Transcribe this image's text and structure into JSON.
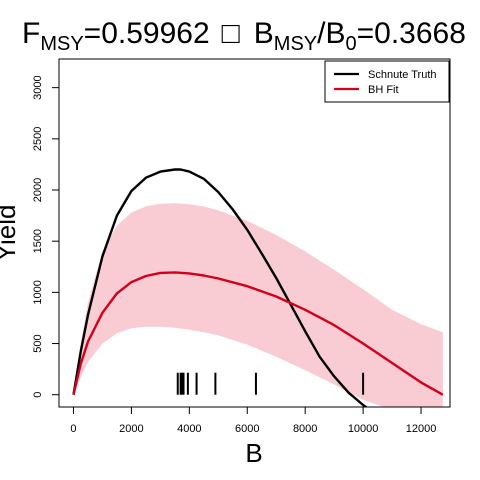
{
  "chart_data": {
    "type": "line",
    "title": {
      "f_main": "F",
      "f_sub": "MSY",
      "f_value": "=0.59962",
      "separator": "□",
      "b_main": "B",
      "b_sub": "MSY",
      "slash": "/",
      "b0_main": "B",
      "b0_sub": "0",
      "b_value": "=0.3668"
    },
    "xlabel": "B",
    "ylabel": "Yield",
    "xlim": [
      -500,
      13000
    ],
    "ylim": [
      -120,
      3280
    ],
    "x_ticks": [
      0,
      2000,
      4000,
      6000,
      8000,
      10000,
      12000
    ],
    "x_tick_labels": [
      "0",
      "2000",
      "4000",
      "6000",
      "8000",
      "10000",
      "12000"
    ],
    "y_ticks": [
      0,
      500,
      1000,
      1500,
      2000,
      2500,
      3000
    ],
    "y_tick_labels": [
      "0",
      "500",
      "1000",
      "1500",
      "2000",
      "2500",
      "3000"
    ],
    "legend_position": "top-right",
    "series": [
      {
        "name": "Schnute Truth",
        "color": "#000000",
        "x": [
          0,
          250,
          500,
          1000,
          1500,
          2000,
          2500,
          3000,
          3500,
          3700,
          4000,
          4500,
          5000,
          5500,
          6000,
          6500,
          7000,
          7500,
          8000,
          8500,
          9000,
          9500,
          10000,
          10200
        ],
        "y": [
          0,
          420,
          780,
          1350,
          1750,
          1990,
          2120,
          2180,
          2200,
          2200,
          2180,
          2110,
          1980,
          1810,
          1610,
          1380,
          1140,
          880,
          620,
          370,
          180,
          20,
          -100,
          -140
        ]
      },
      {
        "name": "BH Fit",
        "color": "#d40019",
        "x": [
          0,
          250,
          500,
          1000,
          1500,
          2000,
          2500,
          3000,
          3500,
          4000,
          4500,
          5000,
          6000,
          7000,
          8000,
          9000,
          10000,
          11000,
          12000,
          12750
        ],
        "y": [
          0,
          300,
          520,
          800,
          990,
          1100,
          1160,
          1190,
          1195,
          1185,
          1165,
          1135,
          1060,
          960,
          830,
          680,
          500,
          310,
          120,
          0
        ]
      }
    ],
    "confidence_band": {
      "color": "#f9ccd3",
      "x": [
        0,
        250,
        500,
        1000,
        1500,
        2000,
        2500,
        3000,
        3500,
        4000,
        4500,
        5000,
        6000,
        7000,
        8000,
        9000,
        10000,
        11000,
        12000,
        12750
      ],
      "upper": [
        0,
        500,
        900,
        1400,
        1650,
        1780,
        1840,
        1865,
        1870,
        1860,
        1840,
        1800,
        1700,
        1560,
        1400,
        1220,
        1030,
        830,
        690,
        610
      ],
      "lower": [
        0,
        170,
        320,
        500,
        600,
        650,
        665,
        665,
        655,
        635,
        610,
        580,
        490,
        370,
        240,
        100,
        -50,
        -150,
        -150,
        -150
      ]
    },
    "rug": [
      3600,
      3700,
      3750,
      3800,
      3950,
      4250,
      4900,
      6300,
      10000
    ]
  }
}
